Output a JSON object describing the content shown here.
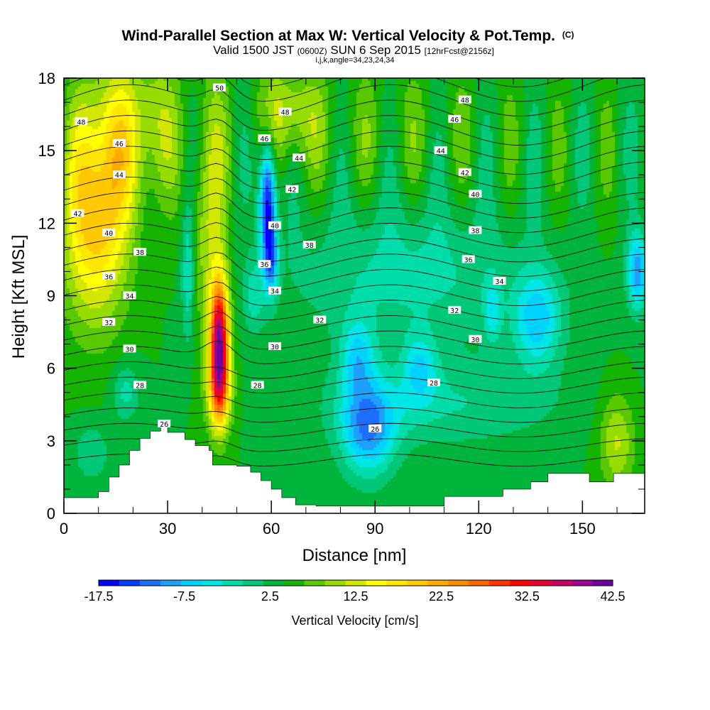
{
  "chart_data": {
    "type": "heatmap",
    "title": "Wind-Parallel Section at Max W: Vertical Velocity & Pot.Temp.",
    "title_mark": "(C)",
    "subtitle_main": "Valid 1500 JST",
    "subtitle_utc": "(0600Z)",
    "subtitle_date": "SUN 6 Sep 2015",
    "subtitle_fcst": "[12hrFcst@2156z]",
    "subtitle2": "i,j,k,angle=34,23,24,34",
    "xlabel": "Distance [nm]",
    "ylabel": "Height [Kft MSL]",
    "xlim": [
      0,
      168
    ],
    "ylim": [
      0,
      18
    ],
    "xticks": [
      "0",
      "30",
      "60",
      "90",
      "120",
      "150"
    ],
    "yticks": [
      "0",
      "3",
      "6",
      "9",
      "12",
      "15",
      "18"
    ],
    "colorbar": {
      "label": "Vertical Velocity [cm/s]",
      "tick_labels": [
        "-17.5",
        "-7.5",
        "2.5",
        "12.5",
        "22.5",
        "32.5",
        "42.5"
      ],
      "levels": [
        -17.5,
        -15,
        -12.5,
        -10,
        -7.5,
        -5,
        -2.5,
        0,
        2.5,
        5,
        7.5,
        10,
        12.5,
        15,
        17.5,
        20,
        22.5,
        25,
        27.5,
        30,
        32.5,
        35,
        37.5,
        40,
        42.5
      ],
      "colors": [
        "#0000ff",
        "#0a3cff",
        "#1e6eff",
        "#1ea0ff",
        "#00d2ff",
        "#00e6e6",
        "#00dcaa",
        "#00c878",
        "#00b43c",
        "#14b400",
        "#5ac800",
        "#96dc00",
        "#d2e600",
        "#ffff00",
        "#ffe600",
        "#ffc800",
        "#ffaa00",
        "#ff8c00",
        "#ff6400",
        "#ff3200",
        "#ff0000",
        "#e60032",
        "#c80064",
        "#a0008c",
        "#6e00a0"
      ]
    },
    "contour_labels": [
      {
        "x": 5,
        "y": 16.2,
        "text": "48"
      },
      {
        "x": 16,
        "y": 15.3,
        "text": "46"
      },
      {
        "x": 16,
        "y": 14.0,
        "text": "44"
      },
      {
        "x": 4,
        "y": 12.4,
        "text": "42"
      },
      {
        "x": 13,
        "y": 11.6,
        "text": "40"
      },
      {
        "x": 22,
        "y": 10.8,
        "text": "38"
      },
      {
        "x": 13,
        "y": 9.8,
        "text": "36"
      },
      {
        "x": 19,
        "y": 9.0,
        "text": "34"
      },
      {
        "x": 13,
        "y": 7.9,
        "text": "32"
      },
      {
        "x": 19,
        "y": 6.8,
        "text": "30"
      },
      {
        "x": 22,
        "y": 5.3,
        "text": "28"
      },
      {
        "x": 29,
        "y": 3.7,
        "text": "26"
      },
      {
        "x": 45,
        "y": 17.6,
        "text": "50"
      },
      {
        "x": 64,
        "y": 16.6,
        "text": "48"
      },
      {
        "x": 58,
        "y": 15.5,
        "text": "46"
      },
      {
        "x": 68,
        "y": 14.7,
        "text": "44"
      },
      {
        "x": 66,
        "y": 13.4,
        "text": "42"
      },
      {
        "x": 61,
        "y": 11.9,
        "text": "40"
      },
      {
        "x": 71,
        "y": 11.1,
        "text": "38"
      },
      {
        "x": 58,
        "y": 10.3,
        "text": "36"
      },
      {
        "x": 61,
        "y": 9.2,
        "text": "34"
      },
      {
        "x": 74,
        "y": 8.0,
        "text": "32"
      },
      {
        "x": 61,
        "y": 6.9,
        "text": "30"
      },
      {
        "x": 56,
        "y": 5.3,
        "text": "28"
      },
      {
        "x": 90,
        "y": 3.5,
        "text": "26"
      },
      {
        "x": 116,
        "y": 17.1,
        "text": "48"
      },
      {
        "x": 113,
        "y": 16.3,
        "text": "46"
      },
      {
        "x": 109,
        "y": 15.0,
        "text": "44"
      },
      {
        "x": 116,
        "y": 14.1,
        "text": "42"
      },
      {
        "x": 119,
        "y": 13.2,
        "text": "40"
      },
      {
        "x": 119,
        "y": 11.7,
        "text": "38"
      },
      {
        "x": 117,
        "y": 10.5,
        "text": "36"
      },
      {
        "x": 126,
        "y": 9.6,
        "text": "34"
      },
      {
        "x": 113,
        "y": 8.4,
        "text": "32"
      },
      {
        "x": 119,
        "y": 7.2,
        "text": "30"
      },
      {
        "x": 107,
        "y": 5.4,
        "text": "28"
      }
    ]
  }
}
